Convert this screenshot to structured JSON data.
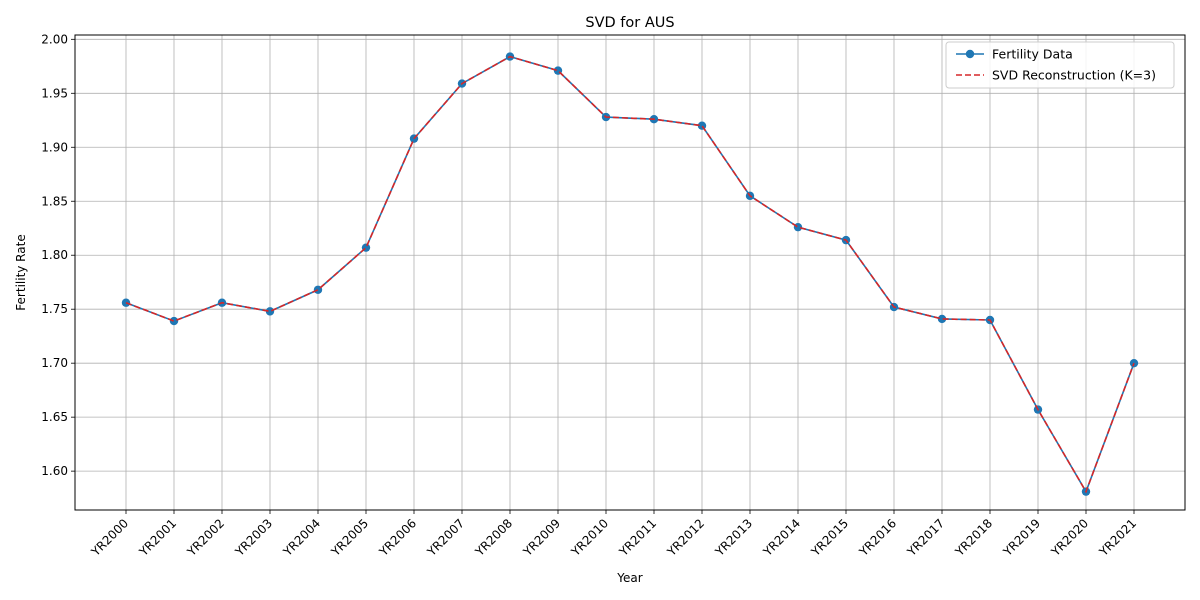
{
  "chart_data": {
    "type": "line",
    "title": "SVD for AUS",
    "xlabel": "Year",
    "ylabel": "Fertility Rate",
    "categories": [
      "YR2000",
      "YR2001",
      "YR2002",
      "YR2003",
      "YR2004",
      "YR2005",
      "YR2006",
      "YR2007",
      "YR2008",
      "YR2009",
      "YR2010",
      "YR2011",
      "YR2012",
      "YR2013",
      "YR2014",
      "YR2015",
      "YR2016",
      "YR2017",
      "YR2018",
      "YR2019",
      "YR2020",
      "YR2021"
    ],
    "series": [
      {
        "name": "Fertility Data",
        "color": "#1f77b4",
        "style": "solid-with-markers",
        "values": [
          1.756,
          1.739,
          1.756,
          1.748,
          1.768,
          1.807,
          1.908,
          1.959,
          1.984,
          1.971,
          1.928,
          1.926,
          1.92,
          1.855,
          1.826,
          1.814,
          1.752,
          1.741,
          1.74,
          1.657,
          1.581,
          1.7
        ]
      },
      {
        "name": "SVD Reconstruction (K=3)",
        "color": "#d62728",
        "style": "dashed",
        "values": [
          1.756,
          1.739,
          1.756,
          1.748,
          1.768,
          1.807,
          1.908,
          1.959,
          1.984,
          1.971,
          1.928,
          1.926,
          1.92,
          1.855,
          1.826,
          1.814,
          1.752,
          1.741,
          1.74,
          1.657,
          1.581,
          1.7
        ]
      }
    ],
    "ylim": [
      1.564,
      2.004
    ],
    "yticks": [
      1.6,
      1.65,
      1.7,
      1.75,
      1.8,
      1.85,
      1.9,
      1.95,
      2.0
    ],
    "ytick_labels": [
      "1.60",
      "1.65",
      "1.70",
      "1.75",
      "1.80",
      "1.85",
      "1.90",
      "1.95",
      "2.00"
    ],
    "grid": true,
    "legend_position": "top-right"
  }
}
